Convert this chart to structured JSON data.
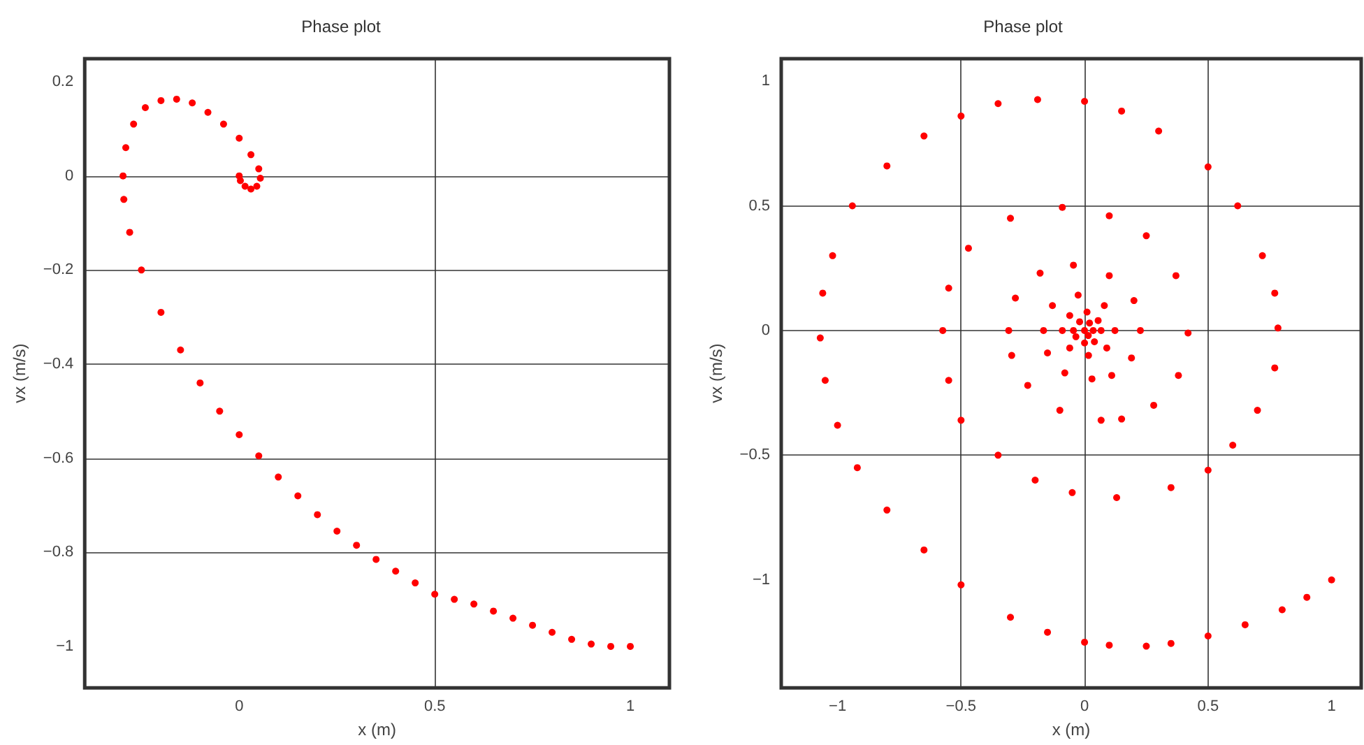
{
  "chart_data": [
    {
      "type": "scatter",
      "title": "Phase plot",
      "xlabel": "x (m)",
      "ylabel": "vx (m/s)",
      "color": "#ff0000",
      "marker": "circle",
      "grid": true,
      "xlim": [
        -0.395,
        1.1
      ],
      "ylim": [
        -1.088,
        0.249
      ],
      "xticks": [
        0,
        0.5,
        1
      ],
      "yticks": [
        -1,
        -0.8,
        -0.6,
        -0.4,
        -0.2,
        0,
        0.2
      ],
      "x": [
        1,
        0.95,
        0.9,
        0.85,
        0.8,
        0.75,
        0.7,
        0.65,
        0.6,
        0.55,
        0.5,
        0.45,
        0.4,
        0.35,
        0.3,
        0.25,
        0.2,
        0.15,
        0.1,
        0.05,
        0,
        -0.05,
        -0.1,
        -0.15,
        -0.2,
        -0.25,
        -0.28,
        -0.295,
        -0.297,
        -0.29,
        -0.27,
        -0.24,
        -0.2,
        -0.16,
        -0.12,
        -0.08,
        -0.04,
        0,
        0.03,
        0.05,
        0.054,
        0.045,
        0.03,
        0.015,
        0.003,
        0
      ],
      "values": [
        -1,
        -1,
        -0.995,
        -0.985,
        -0.97,
        -0.955,
        -0.94,
        -0.925,
        -0.91,
        -0.9,
        -0.889,
        -0.865,
        -0.84,
        -0.815,
        -0.785,
        -0.755,
        -0.72,
        -0.68,
        -0.64,
        -0.595,
        -0.55,
        -0.5,
        -0.44,
        -0.37,
        -0.29,
        -0.2,
        -0.12,
        -0.05,
        0,
        0.06,
        0.11,
        0.145,
        0.16,
        0.163,
        0.155,
        0.135,
        0.11,
        0.08,
        0.045,
        0.015,
        -0.005,
        -0.022,
        -0.028,
        -0.022,
        -0.01,
        0
      ]
    },
    {
      "type": "scatter",
      "title": "Phase plot",
      "xlabel": "x (m)",
      "ylabel": "vx (m/s)",
      "color": "#ff0000",
      "marker": "circle",
      "grid": true,
      "xlim": [
        -1.228,
        1.12
      ],
      "ylim": [
        -1.433,
        1.09
      ],
      "xticks": [
        -1,
        -0.5,
        0,
        0.5,
        1
      ],
      "yticks": [
        -1,
        -0.5,
        0,
        0.5,
        1
      ],
      "x": [
        1,
        0.9,
        0.8,
        0.65,
        0.5,
        0.35,
        0.25,
        0.1,
        0,
        -0.15,
        -0.3,
        -0.5,
        -0.65,
        -0.8,
        -0.92,
        -1.0,
        -1.05,
        -1.07,
        -1.06,
        -1.02,
        -0.94,
        -0.8,
        -0.65,
        -0.5,
        -0.35,
        -0.19,
        0,
        0.15,
        0.3,
        0.5,
        0.62,
        0.72,
        0.77,
        0.783,
        0.77,
        0.7,
        0.6,
        0.5,
        0.35,
        0.13,
        -0.05,
        -0.2,
        -0.35,
        -0.5,
        -0.55,
        -0.574,
        -0.55,
        -0.47,
        -0.3,
        -0.09,
        0.1,
        0.25,
        0.37,
        0.419,
        0.38,
        0.28,
        0.15,
        0.067,
        -0.1,
        -0.23,
        -0.295,
        -0.307,
        -0.28,
        -0.18,
        -0.045,
        0.1,
        0.2,
        0.226,
        0.19,
        0.11,
        0.03,
        -0.08,
        -0.15,
        -0.166,
        -0.13,
        -0.026,
        0.08,
        0.123,
        0.09,
        0.016,
        -0.06,
        -0.09,
        -0.06,
        0.01,
        0.055,
        0.067,
        0.04,
        0,
        -0.035,
        -0.045,
        -0.02,
        0.02,
        0.035,
        0.015,
        0
      ],
      "values": [
        -1,
        -1.07,
        -1.12,
        -1.18,
        -1.225,
        -1.255,
        -1.266,
        -1.262,
        -1.25,
        -1.21,
        -1.15,
        -1.02,
        -0.88,
        -0.72,
        -0.55,
        -0.38,
        -0.2,
        -0.03,
        0.15,
        0.3,
        0.5,
        0.66,
        0.78,
        0.86,
        0.91,
        0.926,
        0.919,
        0.88,
        0.8,
        0.656,
        0.5,
        0.3,
        0.15,
        0.01,
        -0.15,
        -0.32,
        -0.46,
        -0.56,
        -0.63,
        -0.67,
        -0.65,
        -0.6,
        -0.5,
        -0.36,
        -0.2,
        0,
        0.17,
        0.33,
        0.45,
        0.494,
        0.46,
        0.38,
        0.22,
        -0.01,
        -0.18,
        -0.3,
        -0.355,
        -0.36,
        -0.32,
        -0.22,
        -0.1,
        0,
        0.13,
        0.23,
        0.262,
        0.22,
        0.12,
        0,
        -0.11,
        -0.18,
        -0.194,
        -0.17,
        -0.09,
        0,
        0.1,
        0.142,
        0.1,
        0,
        -0.07,
        -0.1,
        -0.07,
        0,
        0.06,
        0.074,
        0.04,
        0,
        -0.045,
        -0.05,
        -0.025,
        0,
        0.035,
        0.03,
        0,
        -0.02,
        0
      ]
    }
  ]
}
